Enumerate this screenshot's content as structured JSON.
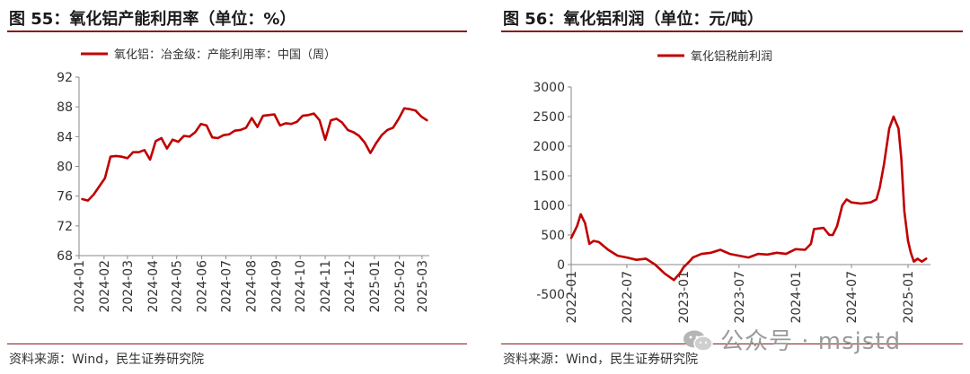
{
  "left": {
    "title": "图 55：氧化铝产能利用率（单位：%）",
    "source": "资料来源：Wind，民生证券研究院"
  },
  "right": {
    "title": "图 56：氧化铝利润（单位：元/吨）",
    "source": "资料来源：Wind，民生证券研究院"
  },
  "watermark": "公众号 · msjstd",
  "colors": {
    "line": "#c00000",
    "rule": "#8b1a1a"
  },
  "chart_data": [
    {
      "type": "line",
      "legend": "top",
      "grid": false,
      "ylim": [
        68,
        92
      ],
      "yticks": [
        68,
        72,
        76,
        80,
        84,
        88,
        92
      ],
      "xticks": [
        "2024-01",
        "2024-02",
        "2024-03",
        "2024-04",
        "2024-05",
        "2024-06",
        "2024-07",
        "2024-08",
        "2024-09",
        "2024-10",
        "2024-11",
        "2024-12",
        "2025-01",
        "2025-02",
        "2025-03"
      ],
      "series": [
        {
          "name": "氧化铝：冶金级：产能利用率：中国（周）",
          "x": [
            "2024-01-05",
            "2024-01-12",
            "2024-01-19",
            "2024-01-26",
            "2024-02-02",
            "2024-02-09",
            "2024-02-16",
            "2024-02-23",
            "2024-03-01",
            "2024-03-08",
            "2024-03-15",
            "2024-03-22",
            "2024-03-29",
            "2024-04-05",
            "2024-04-12",
            "2024-04-19",
            "2024-04-26",
            "2024-05-03",
            "2024-05-10",
            "2024-05-17",
            "2024-05-24",
            "2024-05-31",
            "2024-06-07",
            "2024-06-14",
            "2024-06-21",
            "2024-06-28",
            "2024-07-05",
            "2024-07-12",
            "2024-07-19",
            "2024-07-26",
            "2024-08-02",
            "2024-08-09",
            "2024-08-16",
            "2024-08-23",
            "2024-08-30",
            "2024-09-06",
            "2024-09-13",
            "2024-09-20",
            "2024-09-27",
            "2024-10-04",
            "2024-10-11",
            "2024-10-18",
            "2024-10-25",
            "2024-11-01",
            "2024-11-08",
            "2024-11-15",
            "2024-11-22",
            "2024-11-29",
            "2024-12-06",
            "2024-12-13",
            "2024-12-20",
            "2024-12-27",
            "2025-01-03",
            "2025-01-10",
            "2025-01-17",
            "2025-01-24",
            "2025-01-31",
            "2025-02-07",
            "2025-02-14",
            "2025-02-21",
            "2025-02-28",
            "2025-03-07"
          ],
          "values": [
            75.6,
            75.4,
            76.2,
            77.3,
            78.4,
            81.3,
            81.4,
            81.3,
            81.1,
            81.9,
            81.9,
            82.2,
            80.9,
            83.4,
            83.8,
            82.4,
            83.6,
            83.3,
            84.1,
            84.0,
            84.6,
            85.7,
            85.5,
            83.9,
            83.8,
            84.2,
            84.3,
            84.8,
            84.9,
            85.2,
            86.5,
            85.3,
            86.8,
            86.9,
            87.0,
            85.5,
            85.8,
            85.7,
            86.0,
            86.8,
            86.9,
            87.1,
            86.2,
            83.6,
            86.2,
            86.4,
            85.9,
            84.9,
            84.6,
            84.1,
            83.2,
            81.8,
            83.1,
            84.2,
            84.9,
            85.2,
            86.4,
            87.8,
            87.7,
            87.5,
            86.7,
            86.2
          ]
        }
      ]
    },
    {
      "type": "line",
      "legend": "top",
      "grid": false,
      "ylim": [
        -500,
        3000
      ],
      "yticks": [
        -500,
        0,
        500,
        1000,
        1500,
        2000,
        2500,
        3000
      ],
      "xticks": [
        "2022-01",
        "2022-07",
        "2023-01",
        "2023-07",
        "2024-01",
        "2024-07",
        "2025-01"
      ],
      "series": [
        {
          "name": "氧化铝税前利润",
          "x": [
            "2022-01",
            "2022-01-20",
            "2022-02",
            "2022-02-15",
            "2022-03",
            "2022-03-15",
            "2022-04",
            "2022-05",
            "2022-06",
            "2022-07",
            "2022-08",
            "2022-09",
            "2022-10",
            "2022-11",
            "2022-12",
            "2022-12-20",
            "2023-01",
            "2023-01-20",
            "2023-02",
            "2023-03",
            "2023-04",
            "2023-05",
            "2023-06",
            "2023-07",
            "2023-08",
            "2023-09",
            "2023-10",
            "2023-11",
            "2023-12",
            "2024-01",
            "2024-02",
            "2024-02-20",
            "2024-03",
            "2024-04",
            "2024-04-20",
            "2024-05",
            "2024-05-15",
            "2024-06",
            "2024-06-15",
            "2024-07",
            "2024-08",
            "2024-09",
            "2024-09-20",
            "2024-10",
            "2024-10-15",
            "2024-11",
            "2024-11-15",
            "2024-12",
            "2024-12-10",
            "2024-12-20",
            "2025-01",
            "2025-01-10",
            "2025-01-20",
            "2025-02",
            "2025-02-15",
            "2025-03"
          ],
          "values": [
            450,
            650,
            850,
            700,
            350,
            400,
            380,
            250,
            150,
            120,
            80,
            100,
            0,
            -150,
            -260,
            -150,
            -50,
            50,
            120,
            180,
            200,
            250,
            180,
            150,
            120,
            180,
            170,
            200,
            180,
            260,
            250,
            350,
            600,
            620,
            500,
            500,
            650,
            1000,
            1100,
            1050,
            1030,
            1050,
            1100,
            1300,
            1700,
            2300,
            2500,
            2300,
            1800,
            900,
            400,
            200,
            50,
            100,
            50,
            100
          ]
        }
      ]
    }
  ]
}
